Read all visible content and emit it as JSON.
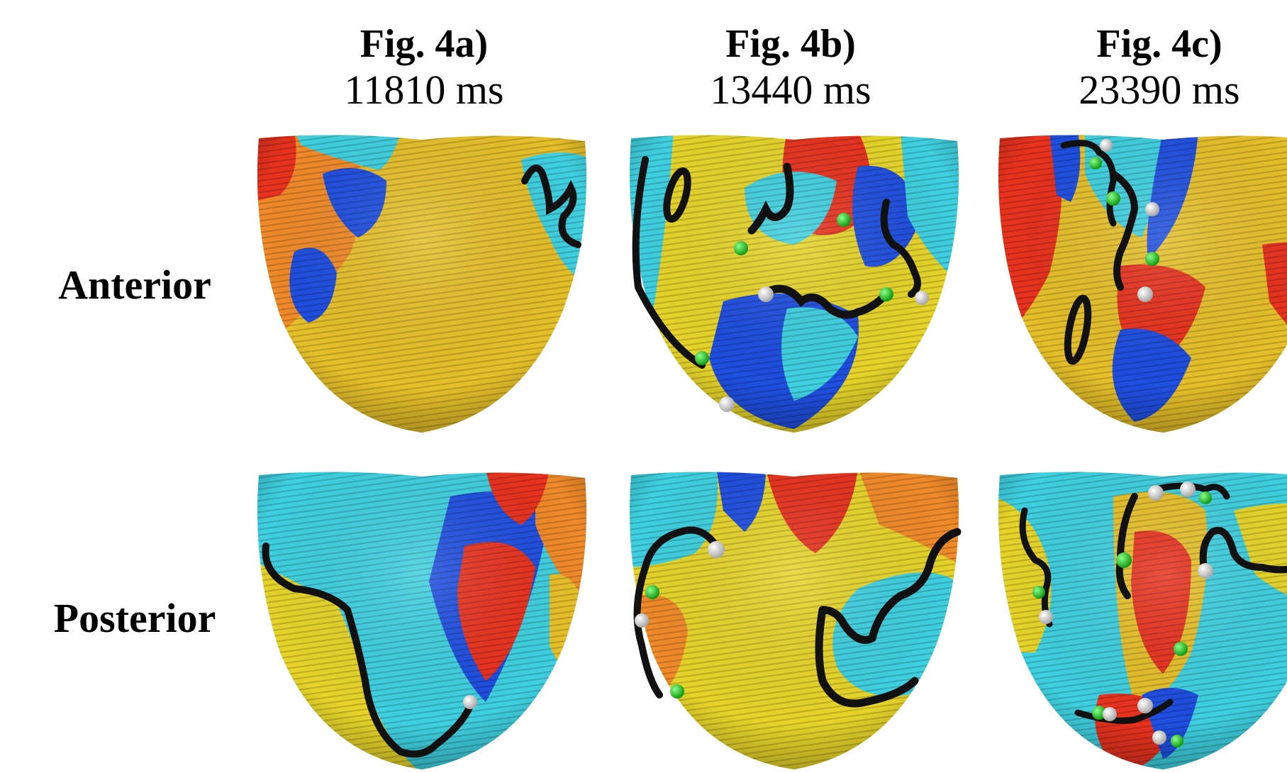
{
  "columns": [
    {
      "label": "Fig. 4a)",
      "time": "11810 ms"
    },
    {
      "label": "Fig. 4b)",
      "time": "13440 ms"
    },
    {
      "label": "Fig. 4c)",
      "time": "23390 ms"
    }
  ],
  "rows": [
    {
      "label": "Anterior"
    },
    {
      "label": "Posterior"
    }
  ],
  "colors": {
    "red": "#e8321e",
    "orange": "#f08a2a",
    "yellow": "#e6d42a",
    "cyan": "#3fd0e0",
    "blue": "#1f4fe0",
    "filament": "#111111",
    "marker_green": "#2bd12b",
    "marker_white": "#f4f4f4"
  }
}
